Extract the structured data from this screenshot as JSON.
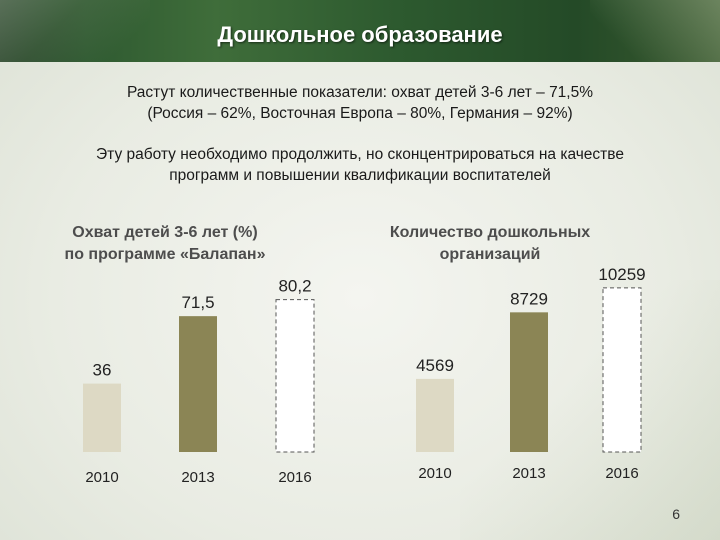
{
  "title": "Дошкольное образование",
  "paragraph1_line1": "Растут количественные показатели: охват детей 3-6 лет – 71,5%",
  "paragraph1_line2": "(Россия – 62%, Восточная Европа – 80%, Германия – 92%)",
  "paragraph2_line1": "Эту работу необходимо продолжить, но сконцентрироваться на качестве",
  "paragraph2_line2": "программ и повышении квалификации воспитателей",
  "page_number": "6",
  "chart_data": [
    {
      "type": "bar",
      "title_line1": "Охват детей 3-6 лет (%)",
      "title_line2": "по программе «Балапан»",
      "categories": [
        "2010",
        "2013",
        "2016"
      ],
      "values": [
        36,
        71.5,
        80.2
      ],
      "value_labels": [
        "36",
        "71,5",
        "80,2"
      ],
      "bar_colors": [
        "#ddd9c4",
        "#8b8555",
        "#ffffff"
      ],
      "dashed": [
        false,
        false,
        true
      ],
      "ylim": [
        0,
        100
      ]
    },
    {
      "type": "bar",
      "title_line1": "Количество дошкольных",
      "title_line2": "организаций",
      "categories": [
        "2010",
        "2013",
        "2016"
      ],
      "values": [
        4569,
        8729,
        10259
      ],
      "value_labels": [
        "4569",
        "8729",
        "10259"
      ],
      "bar_colors": [
        "#ddd9c4",
        "#8b8555",
        "#ffffff"
      ],
      "dashed": [
        false,
        false,
        true
      ],
      "ylim": [
        0,
        12000
      ]
    }
  ]
}
